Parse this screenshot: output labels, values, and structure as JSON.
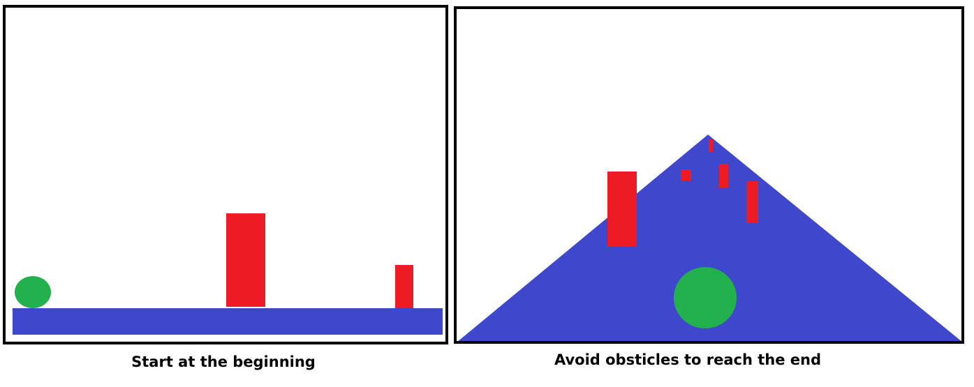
{
  "panels": [
    {
      "caption": "Start at the beginning",
      "objects": {
        "player": "green-ball",
        "ground": "flat-blue-platform",
        "obstacles": 2
      }
    },
    {
      "caption": "Avoid obsticles to reach the end",
      "objects": {
        "player": "green-ball",
        "ground": "blue-triangular-mountain",
        "obstacles": 5
      }
    }
  ],
  "colors": {
    "ground": "#3f48cc",
    "obstacle": "#ed1c24",
    "player": "#22b14c",
    "border": "#000000",
    "background": "#ffffff"
  }
}
